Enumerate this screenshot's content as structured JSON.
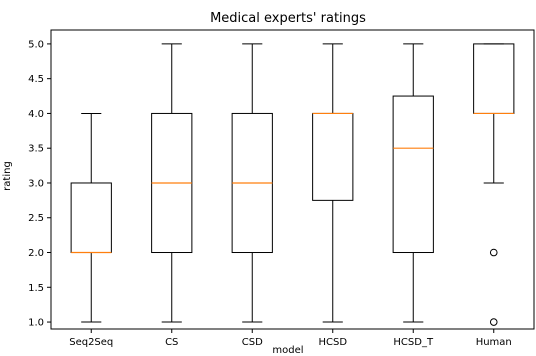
{
  "chart_data": {
    "type": "box",
    "title": "Medical experts' ratings",
    "xlabel": "model",
    "ylabel": "rating",
    "ylim": [
      0.9,
      5.2
    ],
    "yticks": [
      1.0,
      1.5,
      2.0,
      2.5,
      3.0,
      3.5,
      4.0,
      4.5,
      5.0
    ],
    "ytick_labels": [
      "1.0",
      "1.5",
      "2.0",
      "2.5",
      "3.0",
      "3.5",
      "4.0",
      "4.5",
      "5.0"
    ],
    "categories": [
      "Seq2Seq",
      "CS",
      "CSD",
      "HCSD",
      "HCSD_T",
      "Human"
    ],
    "boxes": [
      {
        "name": "Seq2Seq",
        "whislo": 1.0,
        "q1": 2.0,
        "med": 2.0,
        "q3": 3.0,
        "whishi": 4.0,
        "fliers": []
      },
      {
        "name": "CS",
        "whislo": 1.0,
        "q1": 2.0,
        "med": 3.0,
        "q3": 4.0,
        "whishi": 5.0,
        "fliers": []
      },
      {
        "name": "CSD",
        "whislo": 1.0,
        "q1": 2.0,
        "med": 3.0,
        "q3": 4.0,
        "whishi": 5.0,
        "fliers": []
      },
      {
        "name": "HCSD",
        "whislo": 1.0,
        "q1": 2.75,
        "med": 4.0,
        "q3": 4.0,
        "whishi": 5.0,
        "fliers": []
      },
      {
        "name": "HCSD_T",
        "whislo": 1.0,
        "q1": 2.0,
        "med": 3.5,
        "q3": 4.25,
        "whishi": 5.0,
        "fliers": []
      },
      {
        "name": "Human",
        "whislo": 3.0,
        "q1": 4.0,
        "med": 4.0,
        "q3": 5.0,
        "whishi": 5.0,
        "fliers": [
          2.0,
          1.0
        ]
      }
    ],
    "grid": false,
    "colors": {
      "box": "#000000",
      "median": "#ff7f0e",
      "flier": "#000000"
    }
  }
}
